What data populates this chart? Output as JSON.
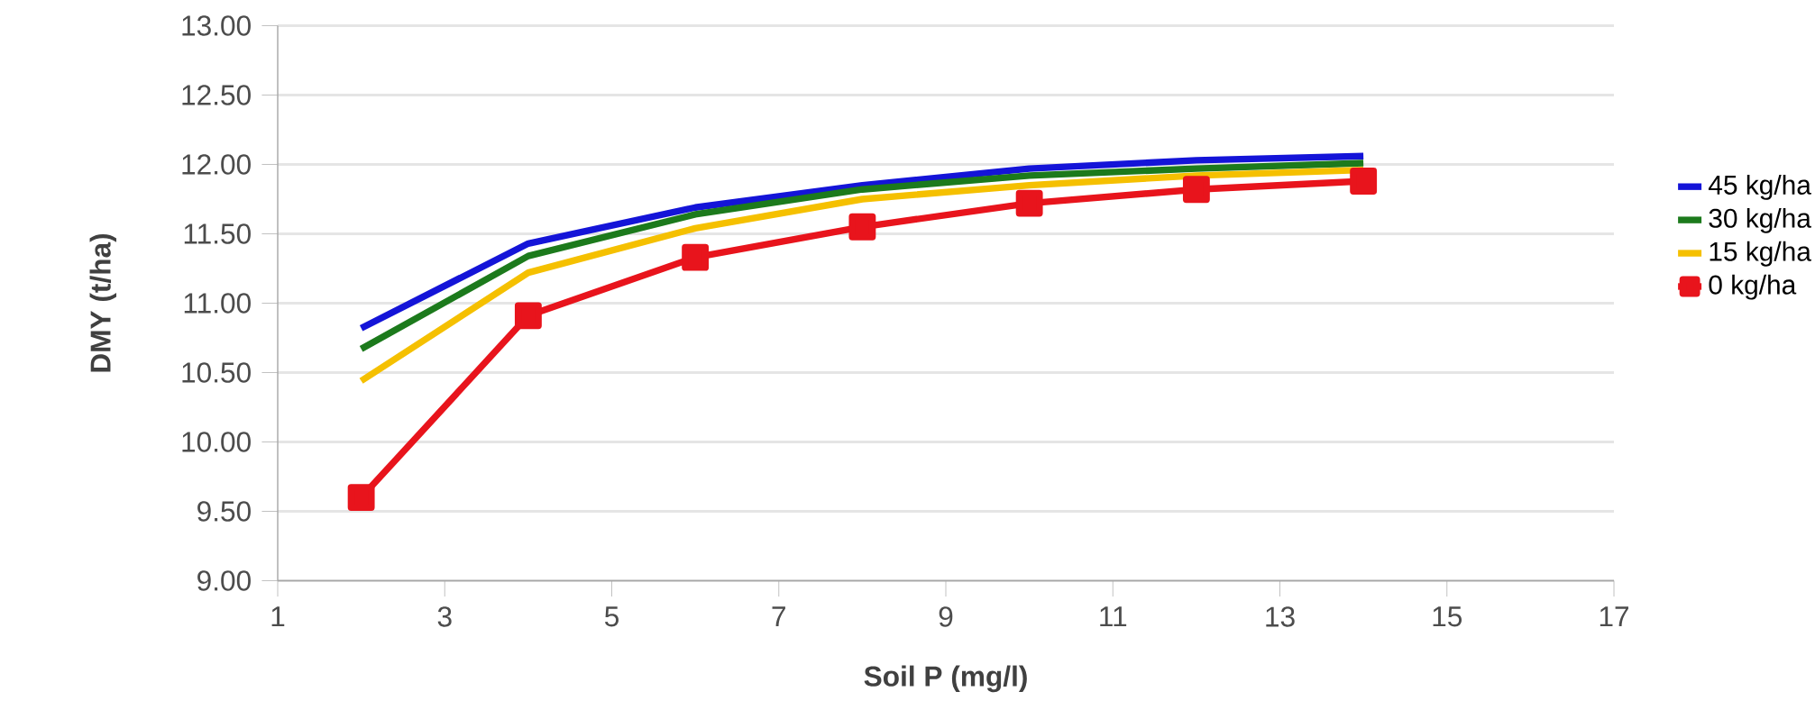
{
  "chart_data": {
    "type": "line",
    "xlabel": "Soil P (mg/l)",
    "ylabel": "DMY (t/ha)",
    "x": [
      2,
      4,
      6,
      8,
      10,
      12,
      14
    ],
    "series": [
      {
        "name": "45 kg/ha",
        "color": "#1414d8",
        "marker": "none",
        "values": [
          10.82,
          11.43,
          11.69,
          11.85,
          11.97,
          12.03,
          12.06
        ]
      },
      {
        "name": "30 kg/ha",
        "color": "#1c7a1c",
        "marker": "none",
        "values": [
          10.67,
          11.34,
          11.64,
          11.82,
          11.92,
          11.97,
          12.01
        ]
      },
      {
        "name": "15 kg/ha",
        "color": "#f5c000",
        "marker": "none",
        "values": [
          10.44,
          11.22,
          11.54,
          11.75,
          11.85,
          11.92,
          11.96
        ]
      },
      {
        "name": "0 kg/ha",
        "color": "#e8141c",
        "marker": "square",
        "values": [
          9.6,
          10.91,
          11.33,
          11.55,
          11.72,
          11.82,
          11.88
        ]
      }
    ],
    "xlim": [
      1,
      17
    ],
    "xticks": [
      1,
      3,
      5,
      7,
      9,
      11,
      13,
      15,
      17
    ],
    "ylim": [
      9,
      13
    ],
    "yticks": [
      {
        "value": 9,
        "label": "9.00"
      },
      {
        "value": 9.5,
        "label": "9.50"
      },
      {
        "value": 10,
        "label": "10.00"
      },
      {
        "value": 10.5,
        "label": "10.50"
      },
      {
        "value": 11,
        "label": "11.00"
      },
      {
        "value": 11.5,
        "label": "11.50"
      },
      {
        "value": 12,
        "label": "12.00"
      },
      {
        "value": 12.5,
        "label": "12.50"
      },
      {
        "value": 13,
        "label": "13.00"
      }
    ],
    "grid": "y",
    "legend": "right",
    "line_style": "solid"
  }
}
